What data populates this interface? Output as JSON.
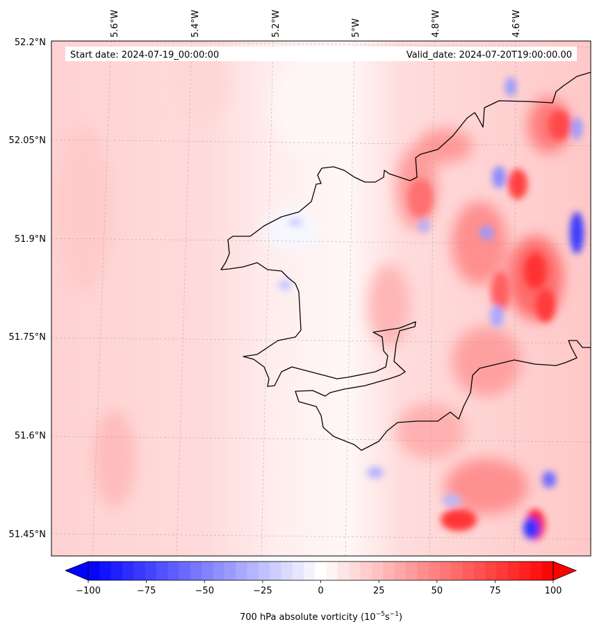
{
  "header": {
    "start_date": "Start date: 2024-07-19_00:00:00",
    "valid_date": "Valid_date: 2024-07-20T19:00:00.00"
  },
  "axes": {
    "longitude_ticks": [
      "5.6°W",
      "5.4°W",
      "5.2°W",
      "5°W",
      "4.8°W",
      "4.6°W"
    ],
    "latitude_ticks": [
      "52.2°N",
      "52.05°N",
      "51.9°N",
      "51.75°N",
      "51.6°N",
      "51.45°N"
    ]
  },
  "colorbar": {
    "ticks": [
      "−100",
      "−75",
      "−50",
      "−25",
      "0",
      "25",
      "50",
      "75",
      "100"
    ],
    "label_main": "700 hPa absolute vorticity (10",
    "label_exp1": "−5",
    "label_mid": "s",
    "label_exp2": "−1",
    "label_end": ")",
    "vmin": -100,
    "vmax": 100,
    "levels": 41,
    "negative_color": "#0000ff",
    "positive_color": "#ff0000",
    "neutral_color": "#ffffff"
  },
  "map": {
    "extend": "both",
    "gridlines": true,
    "coastline_color": "#000000",
    "field_description_colors": [
      "#ffd0d0",
      "#ff6a6a",
      "#6a6aff"
    ]
  }
}
